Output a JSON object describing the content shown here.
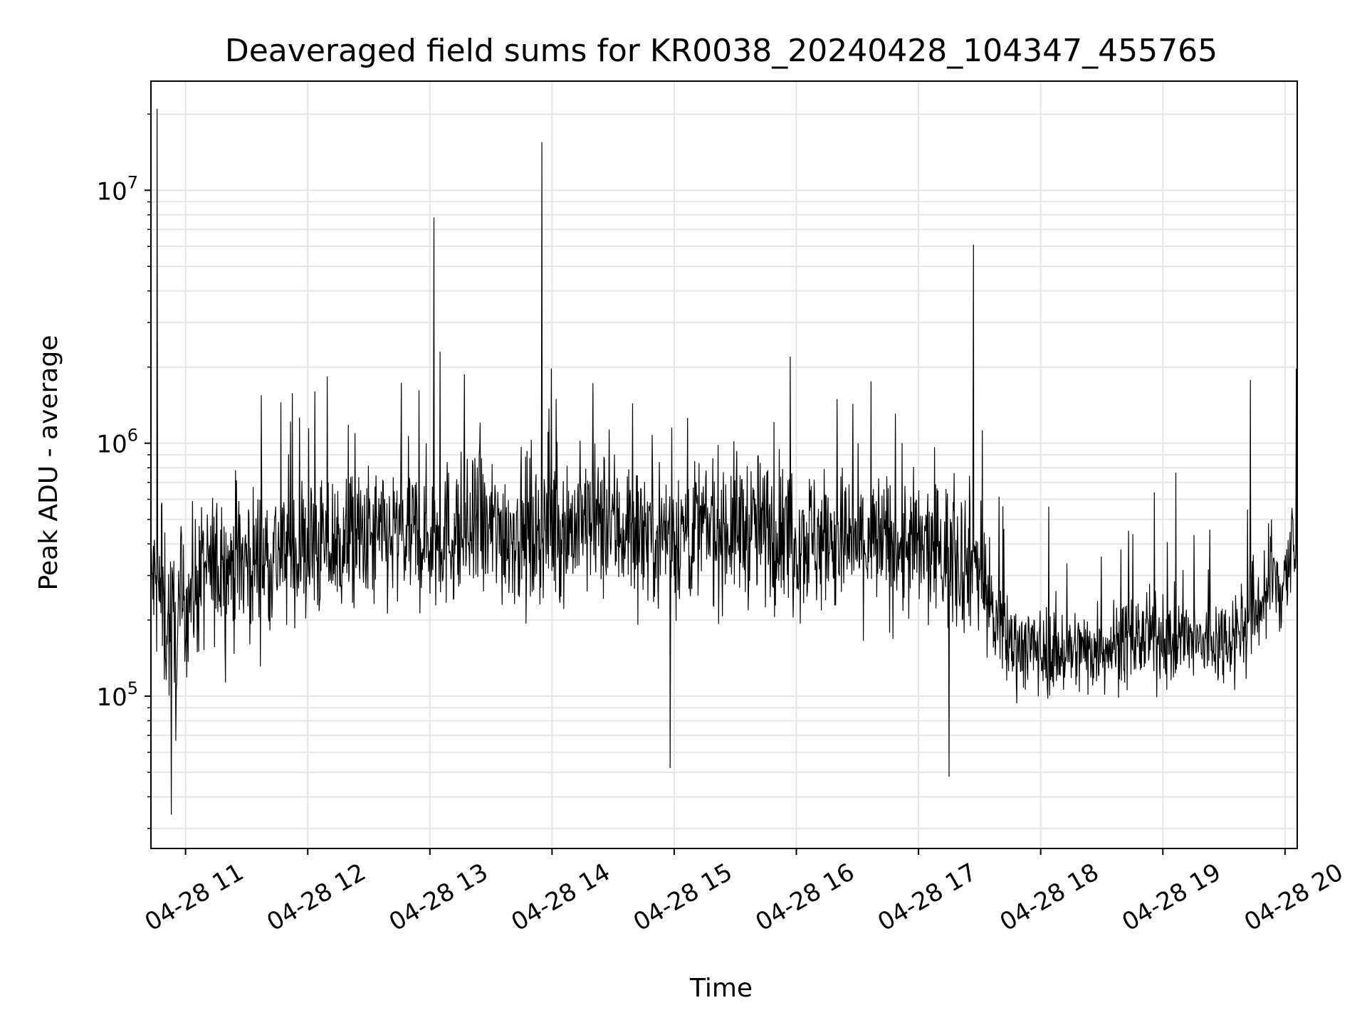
{
  "chart_data": {
    "type": "line",
    "title": "Deaveraged field sums for KR0038_20240428_104347_455765",
    "xlabel": "Time",
    "ylabel": "Peak ADU - average",
    "x_scale": "time",
    "y_scale": "log",
    "xlim": [
      "2024-04-28 10:43",
      "2024-04-28 20:06"
    ],
    "ylim": [
      25000,
      27000000
    ],
    "x_ticks": [
      "04-28 11",
      "04-28 12",
      "04-28 13",
      "04-28 14",
      "04-28 15",
      "04-28 16",
      "04-28 17",
      "04-28 18",
      "04-28 19",
      "04-28 20"
    ],
    "y_ticks": [
      {
        "value": 100000,
        "base": "10",
        "exp": "5"
      },
      {
        "value": 1000000,
        "base": "10",
        "exp": "6"
      },
      {
        "value": 10000000,
        "base": "10",
        "exp": "7"
      }
    ],
    "grid": true,
    "line_color": "#000000",
    "grid_color": "#e6e6e6",
    "series": [
      {
        "x": [
          "2024-04-28 10:43",
          "2024-04-28 10:49",
          "2024-04-28 10:55",
          "2024-04-28 11:00",
          "2024-04-28 11:10",
          "2024-04-28 11:20",
          "2024-04-28 11:30",
          "2024-04-28 11:40",
          "2024-04-28 11:50",
          "2024-04-28 12:00",
          "2024-04-28 12:10",
          "2024-04-28 12:20",
          "2024-04-28 12:30",
          "2024-04-28 12:40",
          "2024-04-28 12:50",
          "2024-04-28 13:00",
          "2024-04-28 13:10",
          "2024-04-28 13:20",
          "2024-04-28 13:30",
          "2024-04-28 13:40",
          "2024-04-28 13:50",
          "2024-04-28 14:00",
          "2024-04-28 14:10",
          "2024-04-28 14:20",
          "2024-04-28 14:30",
          "2024-04-28 14:40",
          "2024-04-28 14:50",
          "2024-04-28 15:00",
          "2024-04-28 15:10",
          "2024-04-28 15:20",
          "2024-04-28 15:30",
          "2024-04-28 15:40",
          "2024-04-28 15:50",
          "2024-04-28 16:00",
          "2024-04-28 16:10",
          "2024-04-28 16:20",
          "2024-04-28 16:30",
          "2024-04-28 16:40",
          "2024-04-28 16:50",
          "2024-04-28 17:00",
          "2024-04-28 17:10",
          "2024-04-28 17:20",
          "2024-04-28 17:30",
          "2024-04-28 17:40",
          "2024-04-28 17:50",
          "2024-04-28 18:00",
          "2024-04-28 18:10",
          "2024-04-28 18:20",
          "2024-04-28 18:30",
          "2024-04-28 18:40",
          "2024-04-28 18:50",
          "2024-04-28 19:00",
          "2024-04-28 19:10",
          "2024-04-28 19:20",
          "2024-04-28 19:30",
          "2024-04-28 19:40",
          "2024-04-28 19:50",
          "2024-04-28 20:00",
          "2024-04-28 20:06"
        ],
        "y": [
          300000,
          230000,
          160000,
          240000,
          310000,
          330000,
          340000,
          360000,
          370000,
          380000,
          390000,
          400000,
          410000,
          420000,
          430000,
          430000,
          440000,
          440000,
          450000,
          450000,
          450000,
          460000,
          470000,
          480000,
          470000,
          460000,
          450000,
          440000,
          450000,
          460000,
          470000,
          460000,
          450000,
          430000,
          420000,
          410000,
          400000,
          400000,
          390000,
          380000,
          370000,
          360000,
          330000,
          170000,
          160000,
          150000,
          150000,
          150000,
          160000,
          160000,
          170000,
          170000,
          165000,
          160000,
          170000,
          190000,
          250000,
          300000,
          400000
        ],
        "spread": [
          0.45,
          0.6,
          0.6,
          0.5,
          0.5,
          0.5,
          0.5,
          0.5,
          0.5,
          0.5,
          0.5,
          0.5,
          0.5,
          0.5,
          0.5,
          0.5,
          0.5,
          0.5,
          0.5,
          0.5,
          0.5,
          0.5,
          0.5,
          0.5,
          0.5,
          0.5,
          0.5,
          0.5,
          0.5,
          0.5,
          0.5,
          0.5,
          0.5,
          0.5,
          0.5,
          0.5,
          0.5,
          0.5,
          0.5,
          0.5,
          0.5,
          0.5,
          0.5,
          0.35,
          0.3,
          0.3,
          0.3,
          0.3,
          0.3,
          0.3,
          0.3,
          0.3,
          0.3,
          0.3,
          0.3,
          0.35,
          0.4,
          0.45,
          0.45
        ],
        "peaks": [
          {
            "x": "2024-04-28 10:46",
            "y": 21000000
          },
          {
            "x": "2024-04-28 13:02",
            "y": 7800000
          },
          {
            "x": "2024-04-28 13:05",
            "y": 2300000
          },
          {
            "x": "2024-04-28 13:55",
            "y": 15500000
          },
          {
            "x": "2024-04-28 15:57",
            "y": 2200000
          },
          {
            "x": "2024-04-28 17:27",
            "y": 6100000
          },
          {
            "x": "2024-04-28 19:43",
            "y": 1780000
          },
          {
            "x": "2024-04-28 10:53",
            "y": 34000
          },
          {
            "x": "2024-04-28 14:58",
            "y": 52000
          },
          {
            "x": "2024-04-28 17:15",
            "y": 48000
          }
        ]
      }
    ]
  }
}
